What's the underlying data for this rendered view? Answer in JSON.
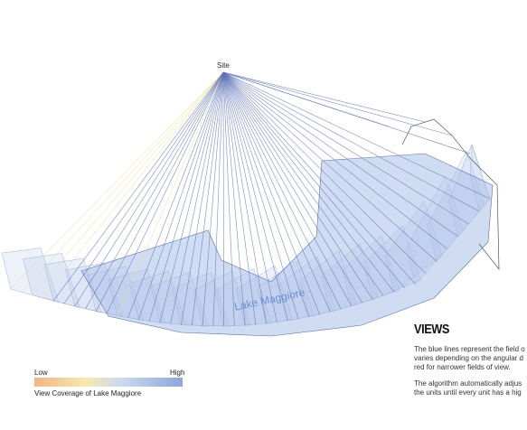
{
  "site_label": "Site",
  "lake_label": "Lake Maggiore",
  "views": {
    "title": "VIEWS",
    "lines": [
      "The blue lines represent the field o",
      "varies depending on the angular d",
      "red for narrower fields of view.",
      "",
      "The algorithm automatically adjus",
      "the units until every unit has a hig"
    ]
  },
  "legend": {
    "low": "Low",
    "high": "High",
    "caption": "View Coverage of Lake Maggiore"
  }
}
